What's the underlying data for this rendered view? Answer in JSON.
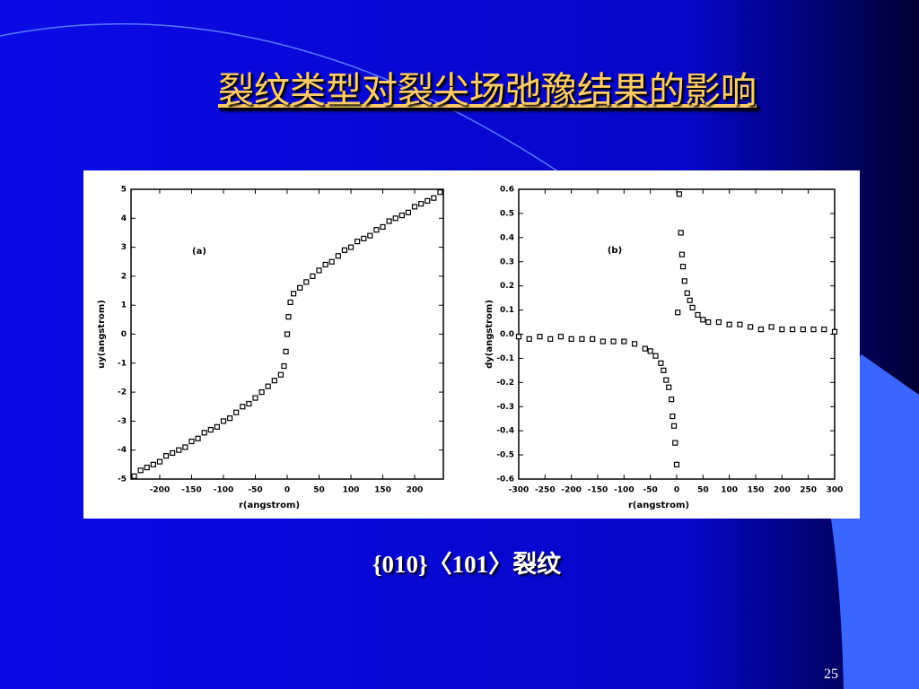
{
  "title": "裂纹类型对裂尖场弛豫结果的影响",
  "caption": "{010}〈101〉裂纹",
  "page_number": "25",
  "chart_data": [
    {
      "type": "scatter",
      "annotation": "(a)",
      "xlabel": "r(angstrom)",
      "ylabel": "uy(angstrom)",
      "color": "#000000",
      "xlim": [
        -245,
        245
      ],
      "xticks": [
        -200,
        -150,
        -100,
        -50,
        0,
        50,
        100,
        150,
        200
      ],
      "ylim": [
        -5,
        5
      ],
      "yticks": [
        -5,
        -4,
        -3,
        -2,
        -1,
        0,
        1,
        2,
        3,
        4,
        5
      ],
      "x": [
        -240,
        -230,
        -220,
        -210,
        -200,
        -190,
        -180,
        -170,
        -160,
        -150,
        -140,
        -130,
        -120,
        -110,
        -100,
        -90,
        -80,
        -70,
        -60,
        -50,
        -40,
        -30,
        -20,
        -10,
        -5,
        -2,
        0,
        2,
        5,
        10,
        20,
        30,
        40,
        50,
        60,
        70,
        80,
        90,
        100,
        110,
        120,
        130,
        140,
        150,
        160,
        170,
        180,
        190,
        200,
        210,
        220,
        230,
        240
      ],
      "y": [
        -4.9,
        -4.7,
        -4.6,
        -4.5,
        -4.4,
        -4.2,
        -4.1,
        -4.0,
        -3.9,
        -3.7,
        -3.6,
        -3.4,
        -3.3,
        -3.2,
        -3.0,
        -2.9,
        -2.7,
        -2.5,
        -2.4,
        -2.2,
        -2.0,
        -1.8,
        -1.6,
        -1.4,
        -1.1,
        -0.6,
        0,
        0.6,
        1.1,
        1.4,
        1.6,
        1.8,
        2.0,
        2.2,
        2.4,
        2.5,
        2.7,
        2.9,
        3.0,
        3.2,
        3.3,
        3.4,
        3.6,
        3.7,
        3.9,
        4.0,
        4.1,
        4.2,
        4.4,
        4.5,
        4.6,
        4.7,
        4.9
      ]
    },
    {
      "type": "scatter",
      "annotation": "(b)",
      "xlabel": "r(angstrom)",
      "ylabel": "dy(angstrom)",
      "color": "#000000",
      "xlim": [
        -300,
        300
      ],
      "xticks": [
        -300,
        -250,
        -200,
        -150,
        -100,
        -50,
        0,
        50,
        100,
        150,
        200,
        250,
        300
      ],
      "ylim": [
        -0.6,
        0.6
      ],
      "yticks": [
        0.6,
        0.5,
        0.4,
        0.3,
        0.2,
        0.1,
        {
          "value": 0,
          "label": "0.0"
        },
        -0.1,
        -0.2,
        -0.3,
        -0.4,
        -0.5,
        -0.6
      ],
      "x": [
        -300,
        -280,
        -260,
        -240,
        -220,
        -200,
        -180,
        -160,
        -140,
        -120,
        -100,
        -80,
        -60,
        -50,
        -40,
        -30,
        -25,
        -20,
        -15,
        -10,
        -8,
        -5,
        -3,
        0,
        2,
        5,
        8,
        10,
        12,
        15,
        20,
        25,
        30,
        40,
        50,
        60,
        80,
        100,
        120,
        140,
        160,
        180,
        200,
        220,
        240,
        260,
        280,
        300
      ],
      "y": [
        -0.01,
        -0.02,
        -0.01,
        -0.02,
        -0.01,
        -0.02,
        -0.02,
        -0.02,
        -0.03,
        -0.03,
        -0.03,
        -0.04,
        -0.06,
        -0.07,
        -0.09,
        -0.12,
        -0.15,
        -0.19,
        -0.22,
        -0.27,
        -0.34,
        -0.38,
        -0.45,
        -0.54,
        0.09,
        0.58,
        0.42,
        0.33,
        0.28,
        0.22,
        0.17,
        0.14,
        0.11,
        0.08,
        0.06,
        0.05,
        0.05,
        0.04,
        0.04,
        0.03,
        0.02,
        0.03,
        0.02,
        0.02,
        0.02,
        0.02,
        0.02,
        0.01
      ]
    }
  ]
}
